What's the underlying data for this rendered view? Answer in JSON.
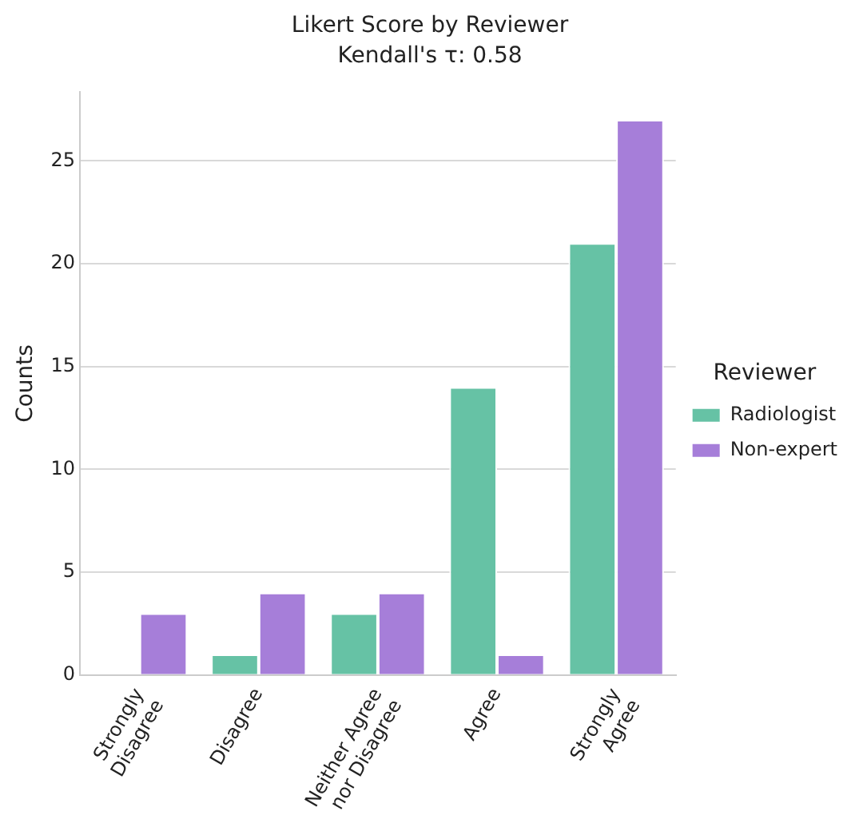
{
  "chart_data": {
    "type": "bar",
    "title": "Likert Score by Reviewer",
    "subtitle": "Kendall's τ: 0.58",
    "ylabel": "Counts",
    "legend_title": "Reviewer",
    "categories": [
      "Strongly\nDisagree",
      "Disagree",
      "Neither Agree\nnor Disagree",
      "Agree",
      "Strongly\nAgree"
    ],
    "series": [
      {
        "name": "Radiologist",
        "color": "#66c2a5",
        "values": [
          0,
          1,
          3,
          14,
          21
        ]
      },
      {
        "name": "Non-expert",
        "color": "#a67ed9",
        "values": [
          3,
          4,
          4,
          1,
          27
        ]
      }
    ],
    "ylim": [
      0,
      28.35
    ],
    "yticks": [
      0,
      5,
      10,
      15,
      20,
      25
    ],
    "grid": "y",
    "legend": "right"
  }
}
